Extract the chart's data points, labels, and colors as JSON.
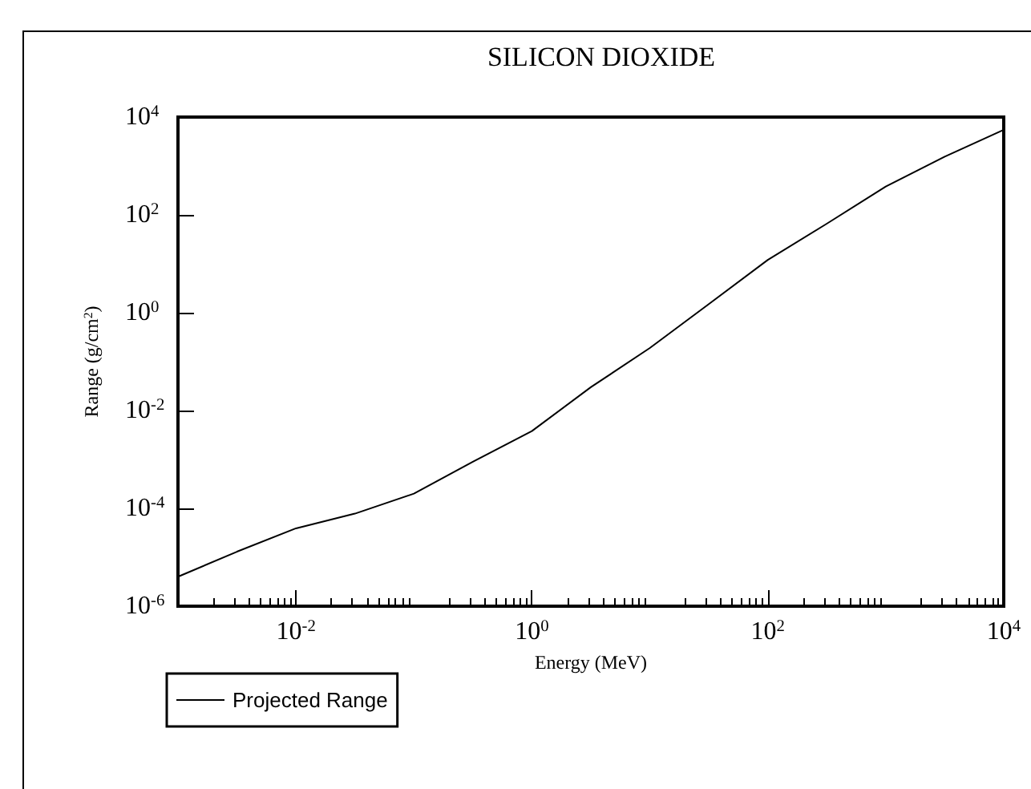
{
  "chart_data": {
    "type": "line",
    "title": "SILICON DIOXIDE",
    "xlabel": "Energy (MeV)",
    "ylabel": "Range (g/cm$^{2}$)",
    "log": "xy",
    "grid": false,
    "legend": "bottom left",
    "marker": "none",
    "line_style": "solid",
    "xlim": [
      0.001,
      10000
    ],
    "ylim": [
      1e-06,
      10000
    ],
    "xticks": [
      {
        "value": 0.001,
        "label": null
      },
      {
        "value": 0.01,
        "label": "10$^{-2}$"
      },
      {
        "value": 1,
        "label": "10$^{0}$"
      },
      {
        "value": 100,
        "label": "10$^{2}$"
      },
      {
        "value": 10000,
        "label": "10$^{4}$"
      }
    ],
    "yticks": [
      {
        "value": 1e-06,
        "label": "10$^{-6}$"
      },
      {
        "value": 0.0001,
        "label": "10$^{-4}$"
      },
      {
        "value": 0.01,
        "label": "10$^{-2}$"
      },
      {
        "value": 1,
        "label": "10$^{0}$"
      },
      {
        "value": 100,
        "label": "10$^{2}$"
      },
      {
        "value": 10000,
        "label": "10$^{4}$"
      }
    ],
    "x": [
      0.001,
      0.00316,
      0.01,
      0.0316,
      0.1,
      0.316,
      1,
      3.16,
      10,
      31.6,
      100,
      316,
      1000,
      3160,
      10000
    ],
    "series": [
      {
        "name": "Projected Range",
        "color": "#000000",
        "values": [
          4e-06,
          1.3e-05,
          3.9e-05,
          7.8e-05,
          0.0002,
          0.0009,
          0.0038,
          0.03,
          0.19,
          1.5,
          12,
          66,
          380,
          1550,
          5500
        ]
      }
    ]
  }
}
